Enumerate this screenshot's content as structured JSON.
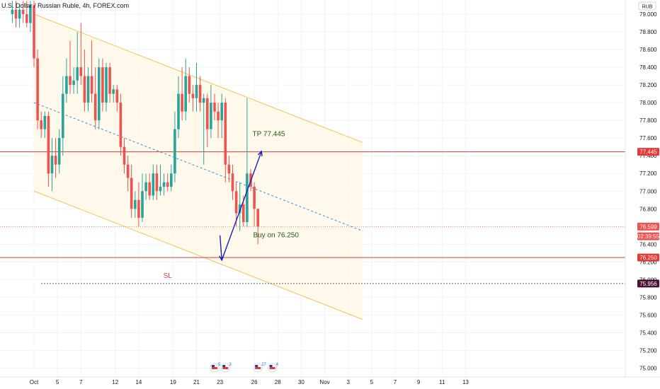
{
  "header": {
    "title": "U.S. Dollar / Russian Ruble, 4h, FOREX.com",
    "currency": "RUB"
  },
  "chart_data": {
    "type": "candlestick",
    "symbol_title": "U.S. Dollar / Russian Ruble, 4h, FOREX.com",
    "y_axis": {
      "ticks": [
        75.0,
        75.2,
        75.4,
        75.6,
        75.8,
        76.0,
        76.2,
        76.4,
        76.6,
        76.8,
        77.0,
        77.2,
        77.4,
        77.6,
        77.8,
        78.0,
        78.2,
        78.4,
        78.6,
        78.8,
        79.0
      ],
      "tick_labels": [
        "75.000",
        "75.200",
        "75.400",
        "75.600",
        "75.800",
        "76.000",
        "76.200",
        "76.400",
        "76.600",
        "76.800",
        "77.000",
        "77.200",
        "77.400",
        "77.600",
        "77.800",
        "78.000",
        "78.200",
        "78.400",
        "78.600",
        "78.800",
        "79.000"
      ],
      "range": [
        74.95,
        79.1
      ]
    },
    "x_axis": {
      "ticks": [
        {
          "label": "Oct",
          "bar": 0
        },
        {
          "label": "5",
          "bar": 6.5
        },
        {
          "label": "7",
          "bar": 13
        },
        {
          "label": "12",
          "bar": 22.5
        },
        {
          "label": "14",
          "bar": 29
        },
        {
          "label": "19",
          "bar": 38.5
        },
        {
          "label": "21",
          "bar": 45
        },
        {
          "label": "23",
          "bar": 51.5
        },
        {
          "label": "26",
          "bar": 61
        },
        {
          "label": "28",
          "bar": 67.5
        },
        {
          "label": "30",
          "bar": 74
        },
        {
          "label": "Nov",
          "bar": 80.5
        },
        {
          "label": "3",
          "bar": 87
        },
        {
          "label": "5",
          "bar": 93.5
        },
        {
          "label": "7",
          "bar": 100
        },
        {
          "label": "9",
          "bar": 106.5
        },
        {
          "label": "11",
          "bar": 113
        },
        {
          "label": "13",
          "bar": 119.5
        }
      ]
    },
    "candles_start_bar": -6,
    "candles": [
      {
        "o": 79.0,
        "h": 79.15,
        "l": 78.9,
        "c": 79.05
      },
      {
        "o": 79.05,
        "h": 79.15,
        "l": 78.85,
        "c": 78.95
      },
      {
        "o": 78.95,
        "h": 79.1,
        "l": 78.85,
        "c": 79.05
      },
      {
        "o": 79.05,
        "h": 79.15,
        "l": 78.9,
        "c": 79.0
      },
      {
        "o": 79.0,
        "h": 79.15,
        "l": 78.85,
        "c": 78.9
      },
      {
        "o": 78.9,
        "h": 79.15,
        "l": 78.8,
        "c": 79.1
      },
      {
        "o": 79.1,
        "h": 79.15,
        "l": 78.4,
        "c": 78.5
      },
      {
        "o": 78.5,
        "h": 78.6,
        "l": 77.7,
        "c": 77.8
      },
      {
        "o": 77.8,
        "h": 77.9,
        "l": 77.6,
        "c": 77.7
      },
      {
        "o": 77.7,
        "h": 77.9,
        "l": 77.6,
        "c": 77.85
      },
      {
        "o": 77.85,
        "h": 77.9,
        "l": 77.05,
        "c": 77.2
      },
      {
        "o": 77.2,
        "h": 77.6,
        "l": 77.0,
        "c": 77.4
      },
      {
        "o": 77.4,
        "h": 77.6,
        "l": 77.15,
        "c": 77.3
      },
      {
        "o": 77.3,
        "h": 77.7,
        "l": 77.2,
        "c": 77.6
      },
      {
        "o": 77.6,
        "h": 78.3,
        "l": 77.4,
        "c": 78.1
      },
      {
        "o": 78.1,
        "h": 78.5,
        "l": 78.0,
        "c": 78.3
      },
      {
        "o": 78.3,
        "h": 78.7,
        "l": 78.1,
        "c": 78.2
      },
      {
        "o": 78.2,
        "h": 78.4,
        "l": 78.1,
        "c": 78.25
      },
      {
        "o": 78.25,
        "h": 78.8,
        "l": 78.1,
        "c": 78.4
      },
      {
        "o": 78.4,
        "h": 78.9,
        "l": 78.2,
        "c": 78.3
      },
      {
        "o": 78.3,
        "h": 78.6,
        "l": 77.9,
        "c": 78.0
      },
      {
        "o": 78.0,
        "h": 78.4,
        "l": 77.9,
        "c": 78.3
      },
      {
        "o": 78.3,
        "h": 78.7,
        "l": 78.0,
        "c": 78.1
      },
      {
        "o": 78.1,
        "h": 78.4,
        "l": 77.7,
        "c": 77.8
      },
      {
        "o": 77.8,
        "h": 78.5,
        "l": 77.7,
        "c": 78.4
      },
      {
        "o": 78.4,
        "h": 78.5,
        "l": 77.9,
        "c": 78.0
      },
      {
        "o": 78.0,
        "h": 78.45,
        "l": 77.9,
        "c": 78.4
      },
      {
        "o": 78.4,
        "h": 78.45,
        "l": 78.0,
        "c": 78.1
      },
      {
        "o": 78.1,
        "h": 78.2,
        "l": 78.0,
        "c": 78.15
      },
      {
        "o": 78.15,
        "h": 78.2,
        "l": 77.9,
        "c": 78.0
      },
      {
        "o": 78.0,
        "h": 78.1,
        "l": 77.4,
        "c": 77.5
      },
      {
        "o": 77.5,
        "h": 77.6,
        "l": 77.2,
        "c": 77.3
      },
      {
        "o": 77.3,
        "h": 77.4,
        "l": 77.0,
        "c": 77.15
      },
      {
        "o": 77.15,
        "h": 77.3,
        "l": 76.7,
        "c": 76.8
      },
      {
        "o": 76.8,
        "h": 77.0,
        "l": 76.7,
        "c": 76.9
      },
      {
        "o": 76.9,
        "h": 77.1,
        "l": 76.6,
        "c": 76.7
      },
      {
        "o": 76.7,
        "h": 77.2,
        "l": 76.65,
        "c": 77.0
      },
      {
        "o": 77.0,
        "h": 77.2,
        "l": 76.9,
        "c": 77.1
      },
      {
        "o": 77.1,
        "h": 77.2,
        "l": 76.9,
        "c": 76.95
      },
      {
        "o": 76.95,
        "h": 77.3,
        "l": 76.9,
        "c": 77.2
      },
      {
        "o": 77.2,
        "h": 77.3,
        "l": 76.9,
        "c": 77.0
      },
      {
        "o": 77.0,
        "h": 77.3,
        "l": 76.95,
        "c": 77.05
      },
      {
        "o": 77.05,
        "h": 77.2,
        "l": 76.95,
        "c": 77.1
      },
      {
        "o": 77.1,
        "h": 77.2,
        "l": 77.0,
        "c": 77.05
      },
      {
        "o": 77.05,
        "h": 77.3,
        "l": 77.0,
        "c": 77.2
      },
      {
        "o": 77.2,
        "h": 77.9,
        "l": 77.1,
        "c": 77.7
      },
      {
        "o": 77.7,
        "h": 78.3,
        "l": 77.6,
        "c": 78.1
      },
      {
        "o": 78.1,
        "h": 78.4,
        "l": 77.8,
        "c": 77.9
      },
      {
        "o": 77.9,
        "h": 78.5,
        "l": 77.8,
        "c": 78.3
      },
      {
        "o": 78.3,
        "h": 78.4,
        "l": 78.0,
        "c": 78.1
      },
      {
        "o": 78.1,
        "h": 78.2,
        "l": 77.9,
        "c": 78.05
      },
      {
        "o": 78.05,
        "h": 78.45,
        "l": 77.9,
        "c": 78.2
      },
      {
        "o": 78.2,
        "h": 78.3,
        "l": 77.9,
        "c": 78.0
      },
      {
        "o": 78.0,
        "h": 78.1,
        "l": 77.3,
        "c": 78.05
      },
      {
        "o": 78.05,
        "h": 78.1,
        "l": 77.5,
        "c": 77.7
      },
      {
        "o": 77.7,
        "h": 78.2,
        "l": 77.6,
        "c": 78.0
      },
      {
        "o": 78.0,
        "h": 78.1,
        "l": 77.8,
        "c": 77.9
      },
      {
        "o": 77.9,
        "h": 78.0,
        "l": 77.6,
        "c": 77.8
      },
      {
        "o": 77.8,
        "h": 78.1,
        "l": 77.6,
        "c": 78.0
      },
      {
        "o": 78.0,
        "h": 78.05,
        "l": 77.1,
        "c": 77.3
      },
      {
        "o": 77.3,
        "h": 77.4,
        "l": 77.1,
        "c": 77.2
      },
      {
        "o": 77.2,
        "h": 77.3,
        "l": 76.9,
        "c": 77.0
      },
      {
        "o": 77.0,
        "h": 77.1,
        "l": 76.6,
        "c": 76.75
      },
      {
        "o": 76.75,
        "h": 77.1,
        "l": 76.55,
        "c": 76.85
      },
      {
        "o": 76.85,
        "h": 76.95,
        "l": 76.6,
        "c": 76.65
      },
      {
        "o": 76.65,
        "h": 78.05,
        "l": 76.6,
        "c": 77.2
      },
      {
        "o": 77.2,
        "h": 77.25,
        "l": 77.0,
        "c": 77.05
      },
      {
        "o": 77.05,
        "h": 77.1,
        "l": 76.6,
        "c": 76.8
      },
      {
        "o": 76.8,
        "h": 76.8,
        "l": 76.4,
        "c": 76.6
      }
    ],
    "channel": {
      "upper": {
        "from": {
          "bar": 0,
          "price": 79.0
        },
        "to": {
          "bar": 91,
          "price": 77.55
        }
      },
      "lower": {
        "from": {
          "bar": 0,
          "price": 77.0
        },
        "to": {
          "bar": 91,
          "price": 75.55
        }
      },
      "midline": {
        "from": {
          "bar": 0,
          "price": 78.0
        },
        "to": {
          "bar": 91,
          "price": 76.55
        }
      }
    },
    "horizontal_lines": [
      {
        "name": "tp-line",
        "price": 77.445,
        "color": "#e53935"
      },
      {
        "name": "entry-line",
        "price": 76.25,
        "color": "#e53935"
      },
      {
        "name": "sl-line",
        "price": 75.956,
        "color": "#333333",
        "dotted": true
      }
    ],
    "arrows": [
      {
        "from": {
          "bar": 51.5,
          "price": 76.5
        },
        "to": {
          "bar": 52,
          "price": 76.22
        }
      },
      {
        "from": {
          "bar": 52,
          "price": 76.22
        },
        "to": {
          "bar": 63,
          "price": 77.45
        }
      }
    ],
    "annotations": [
      {
        "name": "tp-annotation",
        "text": "TP 77.445",
        "bar": 65,
        "price": 77.62,
        "color": "#1b5e20"
      },
      {
        "name": "buy-annotation",
        "text": "Buy on 76.250",
        "bar": 67,
        "price": 76.48,
        "color": "#1b5e20"
      },
      {
        "name": "sl-annotation",
        "text": "SL",
        "bar": 37,
        "price": 76.02,
        "color": "#e53935"
      }
    ],
    "price_tags": [
      {
        "name": "tp-price-tag",
        "text": "77.445",
        "price": 77.445,
        "bg": "#e53935"
      },
      {
        "name": "current-price-tag",
        "text": "76.599",
        "price": 76.599,
        "bg": "#ef5350"
      },
      {
        "name": "countdown-tag",
        "text": "02:39:55",
        "price": 76.49,
        "bg": "#ef5350"
      },
      {
        "name": "entry-price-tag",
        "text": "76.250",
        "price": 76.25,
        "bg": "#e53935"
      },
      {
        "name": "sl-price-tag",
        "text": "75.956",
        "price": 75.956,
        "bg": "#4a1230"
      }
    ],
    "events": [
      {
        "name": "event-flag-1",
        "count": "5",
        "bar": 50
      },
      {
        "name": "event-flag-2",
        "count": "3",
        "bar": 53
      },
      {
        "name": "event-flag-3",
        "count": "27",
        "bar": 62
      },
      {
        "name": "event-flag-4",
        "count": "4",
        "bar": 66
      }
    ],
    "colors": {
      "up": "#26a69a",
      "down": "#ef5350",
      "channel_line": "#f5c45b",
      "channel_fill": "#fff8e6",
      "midline": "#2196f3",
      "arrow": "#1a1fbf"
    }
  }
}
